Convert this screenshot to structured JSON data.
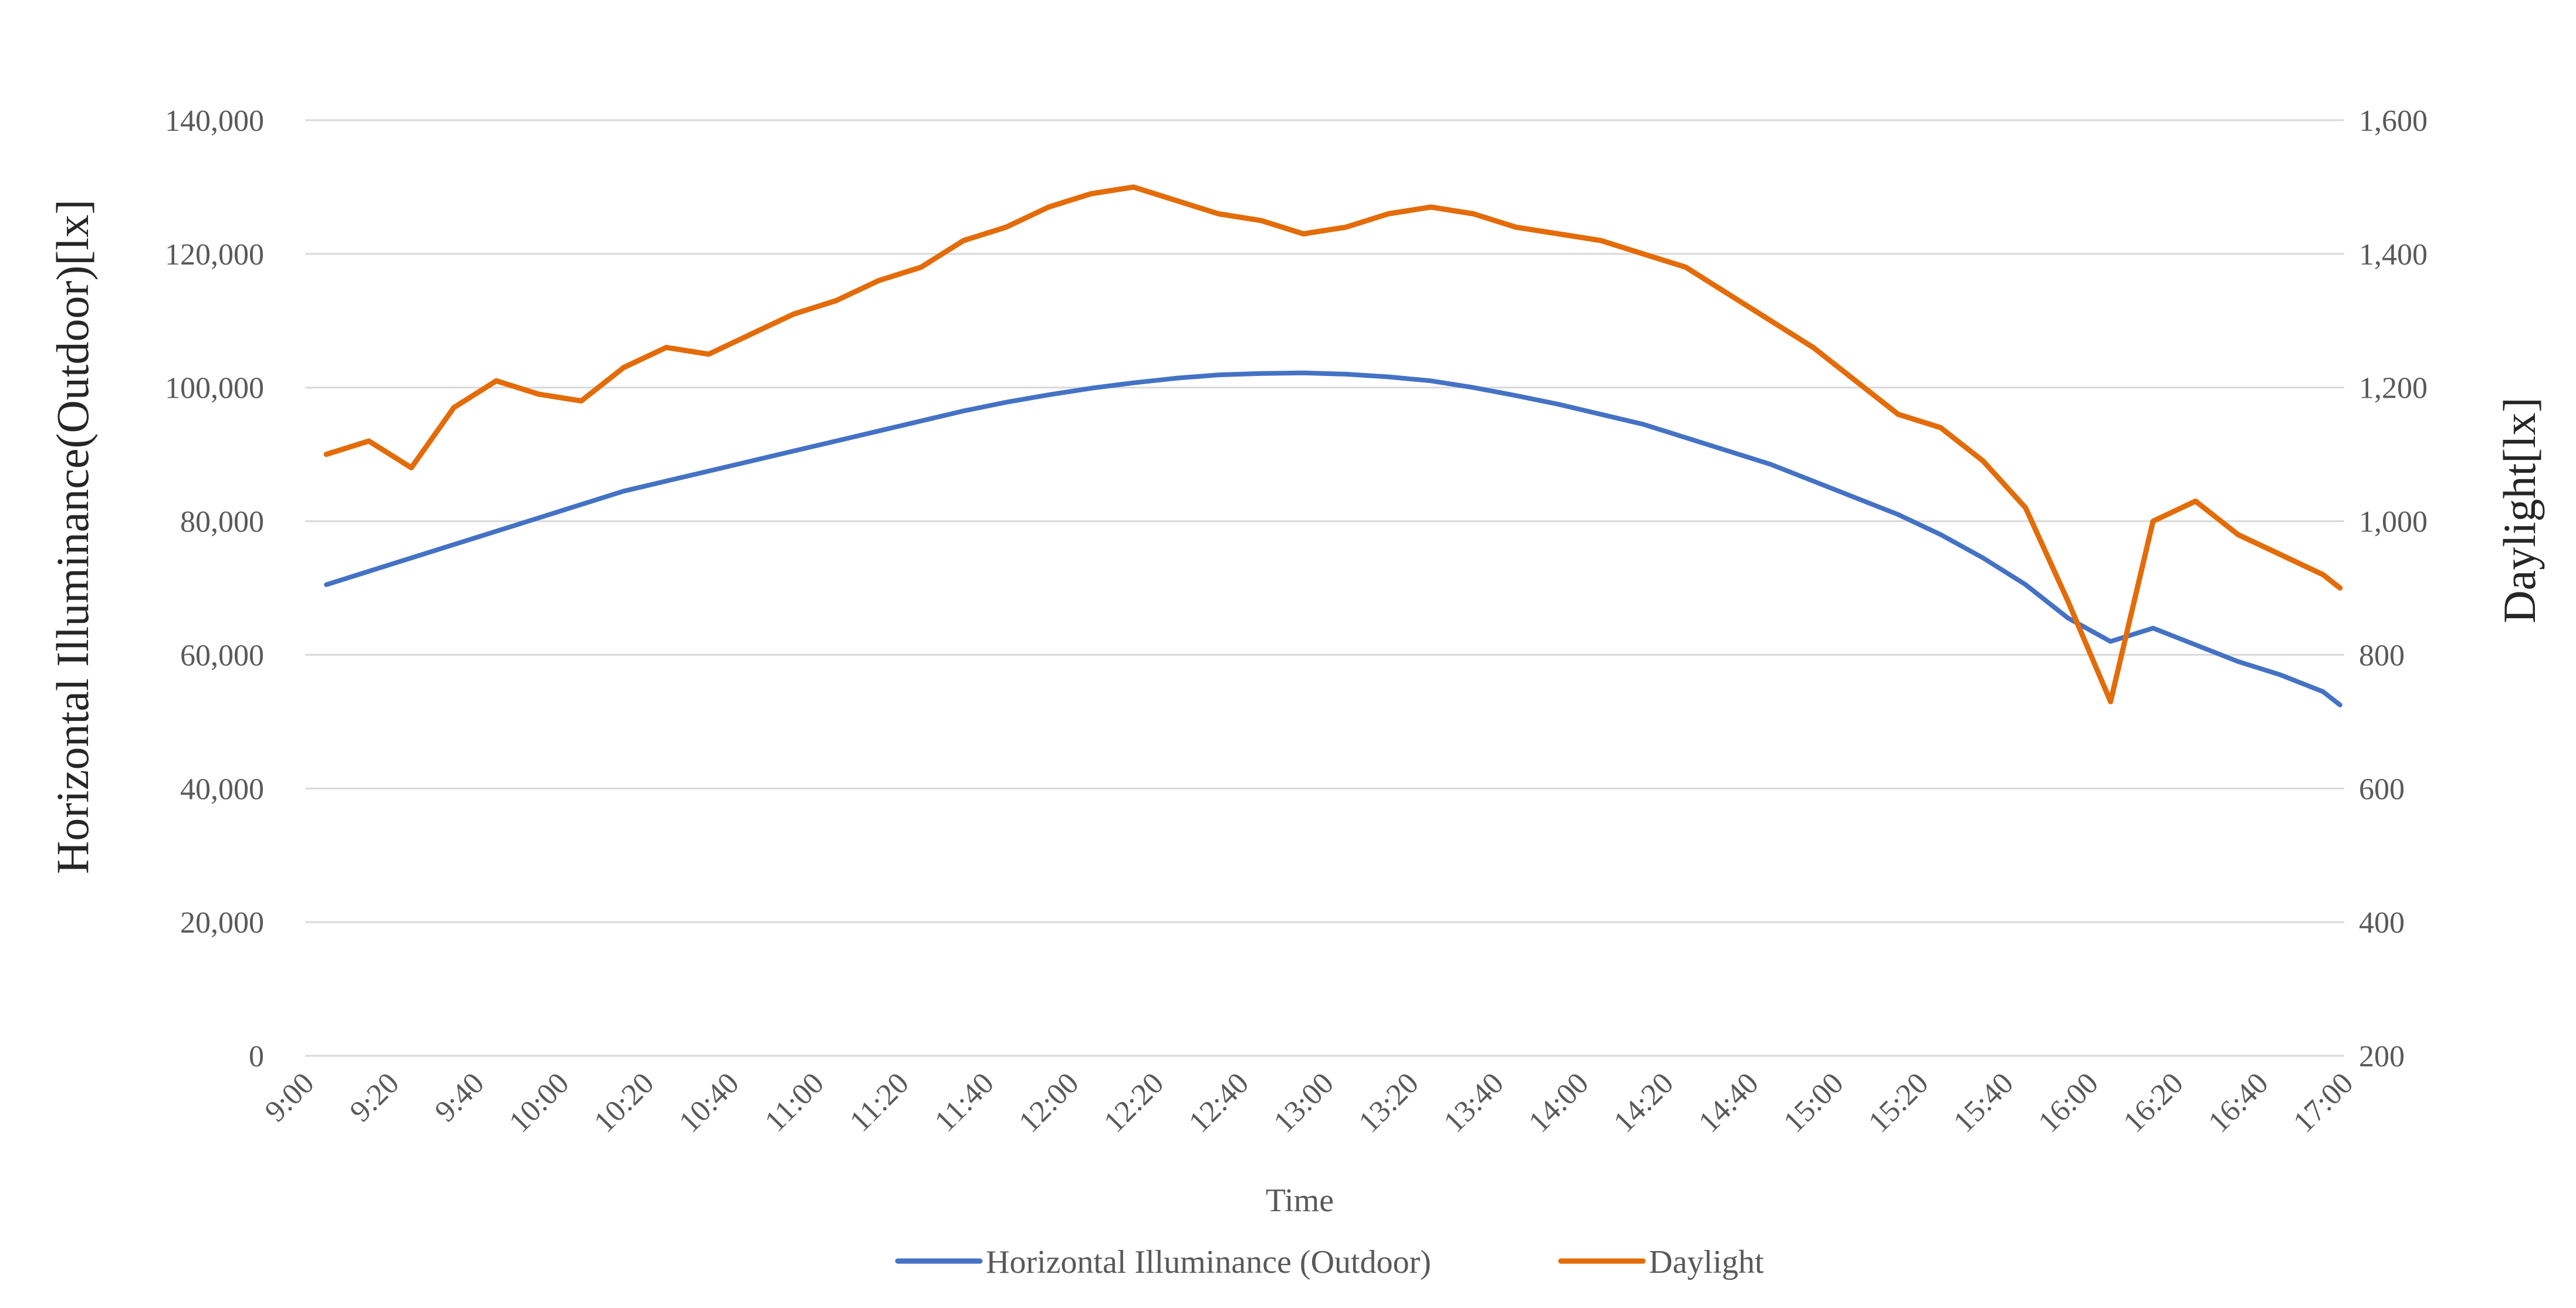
{
  "chart_data": {
    "type": "line",
    "title": "",
    "xlabel": "Time",
    "ylabel": "Horizontal Illuminance(Outdoor)[lx]",
    "y2label": "Daylight[lx]",
    "x_ticks": [
      "9:00",
      "9:20",
      "9:40",
      "10:00",
      "10:20",
      "10:40",
      "11:00",
      "11:20",
      "11:40",
      "12:00",
      "12:20",
      "12:40",
      "13:00",
      "13:20",
      "13:40",
      "14:00",
      "14:20",
      "14:40",
      "15:00",
      "15:20",
      "15:40",
      "16:00",
      "16:20",
      "16:40",
      "17:00"
    ],
    "xlim_minutes": [
      0,
      480
    ],
    "ylim": [
      0,
      140000
    ],
    "y_ticks": [
      "0",
      "20,000",
      "40,000",
      "60,000",
      "80,000",
      "100,000",
      "120,000",
      "140,000"
    ],
    "y2lim": [
      200,
      1600
    ],
    "y2_ticks": [
      "200",
      "400",
      "600",
      "800",
      "1,000",
      "1,200",
      "1,400",
      "1,600"
    ],
    "legend_position": "bottom",
    "series": [
      {
        "name": "Horizontal Illuminance (Outdoor)",
        "axis": "left",
        "color": "#4472c4",
        "x": [
          5,
          15,
          25,
          35,
          45,
          55,
          65,
          75,
          85,
          95,
          105,
          115,
          125,
          135,
          145,
          155,
          165,
          175,
          185,
          195,
          205,
          215,
          225,
          235,
          245,
          255,
          265,
          275,
          285,
          295,
          305,
          315,
          325,
          335,
          345,
          355,
          365,
          375,
          385,
          395,
          405,
          415,
          425,
          435,
          445,
          455,
          465,
          475,
          479
        ],
        "values": [
          70500,
          72500,
          74500,
          76500,
          78500,
          80500,
          82500,
          84500,
          86000,
          87500,
          89000,
          90500,
          92000,
          93500,
          95000,
          96500,
          97800,
          98900,
          99900,
          100700,
          101400,
          101900,
          102100,
          102200,
          102000,
          101600,
          101000,
          100000,
          98800,
          97500,
          96000,
          94500,
          92500,
          90500,
          88500,
          86000,
          83500,
          81000,
          78000,
          74500,
          70500,
          65500,
          62000,
          64000,
          61500,
          59000,
          57000,
          54500,
          52500
        ]
      },
      {
        "name": "Daylight",
        "axis": "right",
        "color": "#e36c09",
        "x": [
          5,
          15,
          25,
          35,
          45,
          55,
          65,
          75,
          85,
          95,
          105,
          115,
          125,
          135,
          145,
          155,
          165,
          175,
          185,
          195,
          205,
          215,
          225,
          235,
          245,
          255,
          265,
          275,
          285,
          295,
          305,
          315,
          325,
          335,
          345,
          355,
          365,
          375,
          385,
          395,
          405,
          415,
          425,
          435,
          445,
          455,
          465,
          475,
          479
        ],
        "values": [
          1100,
          1120,
          1080,
          1170,
          1210,
          1190,
          1180,
          1230,
          1260,
          1250,
          1280,
          1310,
          1330,
          1360,
          1380,
          1420,
          1440,
          1470,
          1490,
          1500,
          1480,
          1460,
          1450,
          1430,
          1440,
          1460,
          1470,
          1460,
          1440,
          1430,
          1420,
          1400,
          1380,
          1340,
          1300,
          1260,
          1210,
          1160,
          1140,
          1090,
          1020,
          880,
          730,
          1000,
          1030,
          980,
          950,
          920,
          900
        ]
      }
    ]
  }
}
